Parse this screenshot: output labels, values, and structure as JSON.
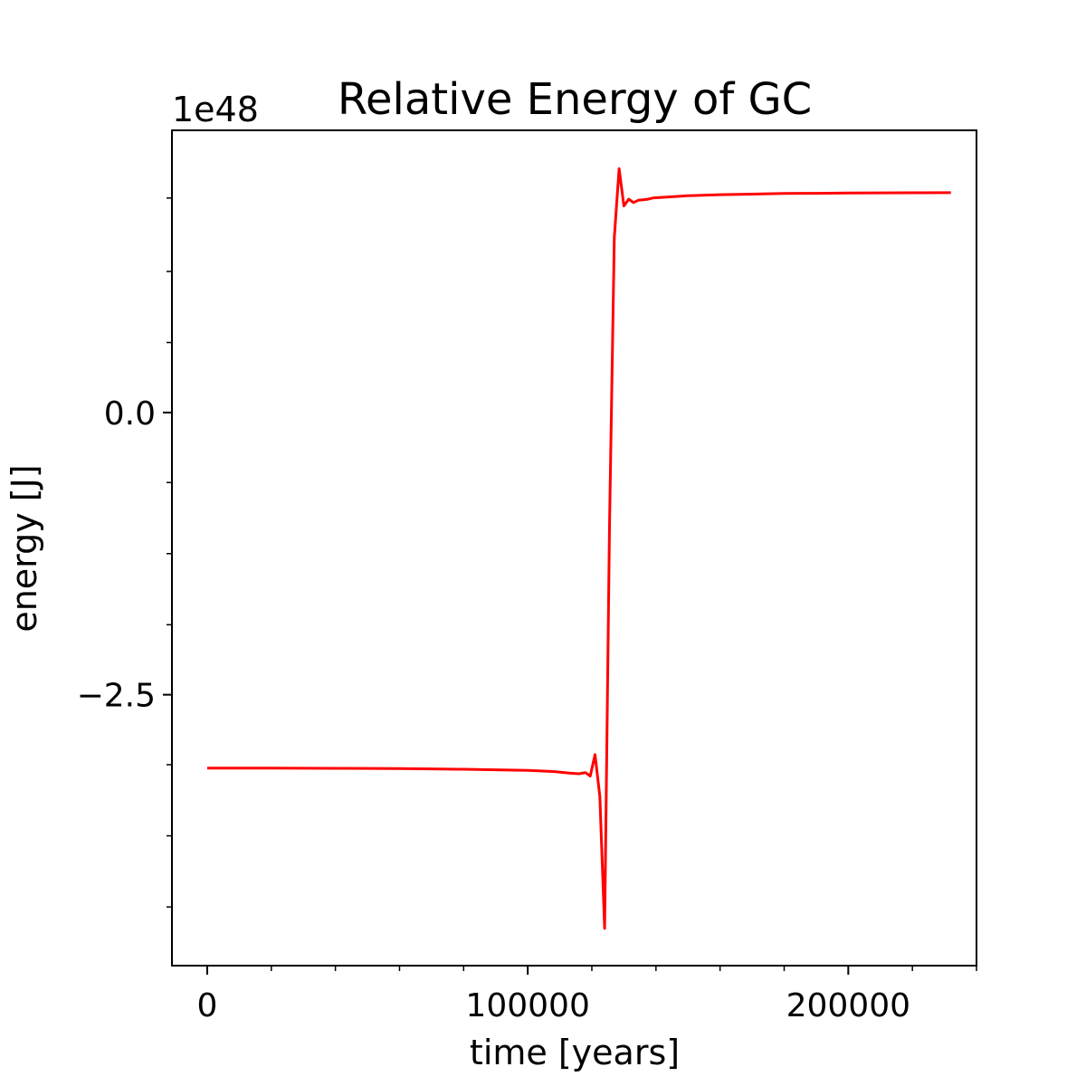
{
  "chart_data": {
    "type": "line",
    "title": "Relative Energy of GC",
    "xlabel": "time [years]",
    "ylabel": "energy [J]",
    "y_offset_label": "1e48",
    "xlim": [
      -11000,
      240000
    ],
    "ylim": [
      -4.9,
      2.5
    ],
    "x_major_ticks": [
      0,
      100000,
      200000
    ],
    "x_tick_labels": [
      "0",
      "100000",
      "200000"
    ],
    "x_minor_ticks": [
      20000,
      40000,
      60000,
      80000,
      120000,
      140000,
      160000,
      180000,
      220000,
      240000
    ],
    "y_major_ticks": [
      0,
      -2.5
    ],
    "y_tick_labels": [
      "0.0",
      "−2.5"
    ],
    "y_minor_ticks": [
      1.9,
      1.25,
      0.62,
      -0.62,
      -1.25,
      -1.88,
      -3.12,
      -3.75,
      -4.38
    ],
    "grid": false,
    "series": [
      {
        "color": "#ff0000",
        "x": [
          0,
          20000,
          40000,
          60000,
          80000,
          100000,
          108000,
          113000,
          116000,
          118000,
          119500,
          121000,
          122500,
          124000,
          125500,
          127000,
          128500,
          130000,
          131500,
          133000,
          134500,
          136000,
          137500,
          139000,
          141000,
          144000,
          150000,
          160000,
          170000,
          180000,
          190000,
          200000,
          210000,
          220000,
          232000
        ],
        "y": [
          -3.15,
          -3.15,
          -3.152,
          -3.155,
          -3.16,
          -3.17,
          -3.18,
          -3.195,
          -3.2,
          -3.19,
          -3.22,
          -3.03,
          -3.4,
          -4.57,
          -1.0,
          1.55,
          2.16,
          1.83,
          1.89,
          1.86,
          1.88,
          1.885,
          1.89,
          1.9,
          1.905,
          1.91,
          1.92,
          1.93,
          1.935,
          1.94,
          1.942,
          1.945,
          1.946,
          1.947,
          1.948
        ]
      }
    ]
  }
}
